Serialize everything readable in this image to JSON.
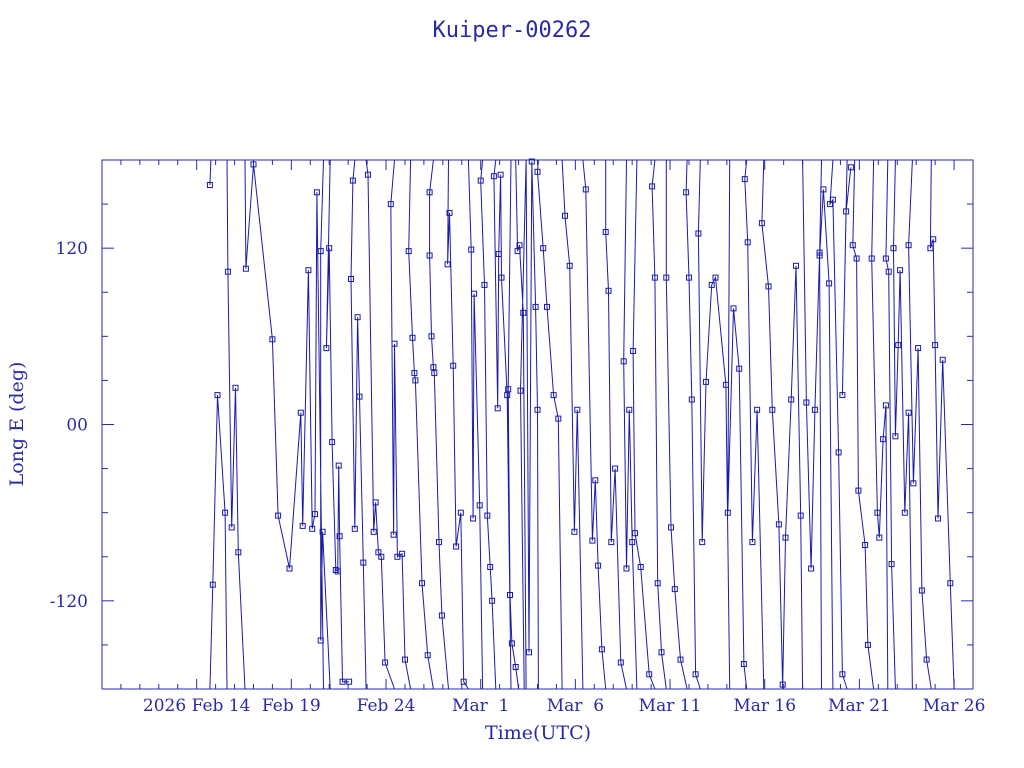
{
  "chart_data": {
    "type": "line",
    "title": "Kuiper-00262",
    "xlabel": "Time(UTC)",
    "ylabel": "Long E (deg)",
    "x_start_date": "2026-02-09",
    "xlim_days": [
      0,
      46
    ],
    "ylim": [
      -180,
      180
    ],
    "x_ticks": [
      {
        "day": 5,
        "label": "2026 Feb 14"
      },
      {
        "day": 10,
        "label": "Feb 19"
      },
      {
        "day": 15,
        "label": "Feb 24"
      },
      {
        "day": 20,
        "label": "Mar  1"
      },
      {
        "day": 25,
        "label": "Mar  6"
      },
      {
        "day": 30,
        "label": "Mar 11"
      },
      {
        "day": 35,
        "label": "Mar 16"
      },
      {
        "day": 40,
        "label": "Mar 21"
      },
      {
        "day": 45,
        "label": "Mar 26"
      }
    ],
    "y_ticks": [
      {
        "value": -120,
        "label": "-120"
      },
      {
        "value": 0,
        "label": "00"
      },
      {
        "value": 120,
        "label": "120"
      }
    ],
    "grid": false,
    "colors": {
      "line": "#1a1aaa",
      "text": "#2a2aa8",
      "axes": "#2a2aa8"
    },
    "series": [
      {
        "name": "",
        "points": [
          [
            5.7,
            163
          ],
          [
            5.75,
            180
          ],
          [
            5.7,
            -180
          ],
          [
            5.85,
            -109
          ],
          [
            6.1,
            20
          ],
          [
            6.5,
            -60
          ],
          [
            6.6,
            -180
          ],
          [
            6.6,
            180
          ],
          [
            6.65,
            104
          ],
          [
            6.85,
            -70
          ],
          [
            7.05,
            25
          ],
          [
            7.2,
            -87
          ],
          [
            7.55,
            -180
          ],
          [
            7.55,
            180
          ],
          [
            7.6,
            106
          ],
          [
            8.0,
            177
          ],
          [
            9.0,
            58
          ],
          [
            9.3,
            -62
          ],
          [
            9.9,
            -98
          ],
          [
            10.5,
            8
          ],
          [
            10.6,
            -69
          ],
          [
            10.9,
            105
          ],
          [
            11.1,
            -71
          ],
          [
            11.25,
            -61
          ],
          [
            11.35,
            158
          ],
          [
            11.7,
            -180
          ],
          [
            11.7,
            180
          ],
          [
            11.55,
            118
          ],
          [
            11.55,
            -147
          ],
          [
            11.65,
            -73
          ],
          [
            12.05,
            -180
          ],
          [
            12.05,
            180
          ],
          [
            11.85,
            52
          ],
          [
            12.0,
            120
          ],
          [
            12.15,
            -12
          ],
          [
            12.35,
            -99
          ],
          [
            12.45,
            -100
          ],
          [
            12.5,
            -28
          ],
          [
            12.55,
            -76
          ],
          [
            12.7,
            -175
          ],
          [
            13.05,
            -175
          ],
          [
            13.35,
            180
          ],
          [
            13.35,
            180
          ],
          [
            13.25,
            166
          ],
          [
            13.15,
            99
          ],
          [
            13.35,
            -71
          ],
          [
            13.5,
            73
          ],
          [
            13.6,
            19
          ],
          [
            13.8,
            -94
          ],
          [
            13.95,
            -180
          ],
          [
            13.95,
            180
          ],
          [
            14.05,
            170
          ],
          [
            14.35,
            -73
          ],
          [
            14.45,
            -53
          ],
          [
            14.6,
            -87
          ],
          [
            14.75,
            -90
          ],
          [
            14.95,
            -162
          ],
          [
            15.45,
            -180
          ],
          [
            15.45,
            180
          ],
          [
            15.25,
            150
          ],
          [
            15.4,
            -75
          ],
          [
            15.45,
            55
          ],
          [
            15.6,
            -90
          ],
          [
            15.85,
            -88
          ],
          [
            16.0,
            -160
          ],
          [
            16.3,
            -180
          ],
          [
            16.3,
            180
          ],
          [
            16.2,
            118
          ],
          [
            16.4,
            59
          ],
          [
            16.5,
            35
          ],
          [
            16.55,
            30
          ],
          [
            16.9,
            -108
          ],
          [
            17.2,
            -157
          ],
          [
            17.5,
            -180
          ],
          [
            17.5,
            180
          ],
          [
            17.3,
            158
          ],
          [
            17.3,
            115
          ],
          [
            17.4,
            60
          ],
          [
            17.5,
            39
          ],
          [
            17.55,
            35
          ],
          [
            17.8,
            -80
          ],
          [
            17.95,
            -130
          ],
          [
            18.3,
            -180
          ],
          [
            18.3,
            180
          ],
          [
            18.25,
            109
          ],
          [
            18.35,
            144
          ],
          [
            18.55,
            40
          ],
          [
            18.7,
            -83
          ],
          [
            18.95,
            -60
          ],
          [
            19.1,
            -175
          ],
          [
            19.35,
            -180
          ],
          [
            19.35,
            180
          ],
          [
            19.5,
            119
          ],
          [
            19.6,
            -64
          ],
          [
            19.65,
            89
          ],
          [
            19.95,
            -55
          ],
          [
            20.1,
            -180
          ],
          [
            20.1,
            180
          ],
          [
            20.0,
            166
          ],
          [
            20.2,
            95
          ],
          [
            20.35,
            -62
          ],
          [
            20.5,
            -97
          ],
          [
            20.6,
            -120
          ],
          [
            20.8,
            -180
          ],
          [
            20.8,
            180
          ],
          [
            20.7,
            169
          ],
          [
            20.9,
            11
          ],
          [
            20.95,
            116
          ],
          [
            21.05,
            170
          ],
          [
            21.1,
            100
          ],
          [
            21.4,
            20
          ],
          [
            21.6,
            -180
          ],
          [
            21.6,
            180
          ],
          [
            21.45,
            24
          ],
          [
            21.55,
            -116
          ],
          [
            21.65,
            -149
          ],
          [
            21.85,
            -165
          ],
          [
            22.0,
            -180
          ],
          [
            22.0,
            180
          ],
          [
            21.85,
            180
          ],
          [
            21.95,
            118
          ],
          [
            22.05,
            122
          ],
          [
            22.25,
            76
          ],
          [
            22.4,
            -180
          ],
          [
            22.4,
            180
          ],
          [
            22.1,
            23
          ],
          [
            22.3,
            -180
          ],
          [
            22.3,
            180
          ],
          [
            22.4,
            -180
          ],
          [
            22.4,
            180
          ],
          [
            22.55,
            -155
          ],
          [
            22.7,
            179
          ],
          [
            22.9,
            80
          ],
          [
            23.0,
            10
          ],
          [
            23.05,
            -180
          ],
          [
            23.05,
            180
          ],
          [
            23.0,
            172
          ],
          [
            23.3,
            120
          ],
          [
            23.5,
            80
          ],
          [
            23.85,
            20
          ],
          [
            24.1,
            4
          ],
          [
            24.3,
            -180
          ],
          [
            24.3,
            180
          ],
          [
            24.45,
            142
          ],
          [
            24.7,
            108
          ],
          [
            24.95,
            -73
          ],
          [
            25.1,
            10
          ],
          [
            25.4,
            -180
          ],
          [
            25.4,
            180
          ],
          [
            25.55,
            160
          ],
          [
            25.9,
            -79
          ],
          [
            26.05,
            -38
          ],
          [
            26.2,
            -96
          ],
          [
            26.4,
            -153
          ],
          [
            26.6,
            -180
          ],
          [
            26.6,
            180
          ],
          [
            26.6,
            131
          ],
          [
            26.75,
            91
          ],
          [
            26.9,
            -80
          ],
          [
            27.1,
            -30
          ],
          [
            27.4,
            -162
          ],
          [
            27.7,
            -180
          ],
          [
            27.7,
            180
          ],
          [
            27.55,
            43
          ],
          [
            27.7,
            -98
          ],
          [
            27.85,
            10
          ],
          [
            28.0,
            -80
          ],
          [
            28.25,
            -180
          ],
          [
            28.25,
            180
          ],
          [
            28.05,
            50
          ],
          [
            28.15,
            -74
          ],
          [
            28.45,
            -97
          ],
          [
            28.9,
            -170
          ],
          [
            29.2,
            -180
          ],
          [
            29.2,
            180
          ],
          [
            29.05,
            162
          ],
          [
            29.2,
            100
          ],
          [
            29.35,
            -108
          ],
          [
            29.55,
            -155
          ],
          [
            29.8,
            -180
          ],
          [
            29.8,
            180
          ],
          [
            29.8,
            100
          ],
          [
            30.05,
            -70
          ],
          [
            30.25,
            -112
          ],
          [
            30.55,
            -160
          ],
          [
            30.9,
            -180
          ],
          [
            30.9,
            180
          ],
          [
            30.85,
            158
          ],
          [
            31.0,
            100
          ],
          [
            31.15,
            17
          ],
          [
            31.35,
            -170
          ],
          [
            31.6,
            -180
          ],
          [
            31.6,
            180
          ],
          [
            31.5,
            130
          ],
          [
            31.7,
            -80
          ],
          [
            31.9,
            29
          ],
          [
            32.2,
            95
          ],
          [
            32.4,
            100
          ],
          [
            32.95,
            27
          ],
          [
            33.15,
            -180
          ],
          [
            33.15,
            180
          ],
          [
            33.05,
            -60
          ],
          [
            33.35,
            79
          ],
          [
            33.65,
            38
          ],
          [
            33.9,
            -163
          ],
          [
            34.05,
            -180
          ],
          [
            34.05,
            180
          ],
          [
            33.95,
            167
          ],
          [
            34.1,
            124
          ],
          [
            34.35,
            -80
          ],
          [
            34.6,
            10
          ],
          [
            34.95,
            -180
          ],
          [
            34.95,
            180
          ],
          [
            34.85,
            137
          ],
          [
            35.2,
            94
          ],
          [
            35.4,
            10
          ],
          [
            35.75,
            -68
          ],
          [
            35.95,
            -180
          ],
          [
            35.95,
            180
          ],
          [
            35.95,
            -177
          ],
          [
            36.1,
            -77
          ],
          [
            36.4,
            17
          ],
          [
            36.65,
            108
          ],
          [
            36.9,
            -62
          ],
          [
            37.0,
            -180
          ],
          [
            37.0,
            180
          ],
          [
            37.2,
            15
          ],
          [
            37.45,
            -98
          ],
          [
            37.65,
            10
          ],
          [
            37.9,
            117
          ],
          [
            38.0,
            -180
          ],
          [
            38.0,
            180
          ],
          [
            37.9,
            115
          ],
          [
            38.1,
            160
          ],
          [
            38.4,
            96
          ],
          [
            38.6,
            -180
          ],
          [
            38.6,
            180
          ],
          [
            38.45,
            150
          ],
          [
            38.6,
            153
          ],
          [
            38.9,
            -19
          ],
          [
            39.1,
            -170
          ],
          [
            39.35,
            -180
          ],
          [
            39.35,
            180
          ],
          [
            39.1,
            20
          ],
          [
            39.3,
            145
          ],
          [
            39.55,
            175
          ],
          [
            39.75,
            -180
          ],
          [
            39.75,
            180
          ],
          [
            39.65,
            122
          ],
          [
            39.85,
            113
          ],
          [
            39.95,
            -45
          ],
          [
            40.3,
            -82
          ],
          [
            40.45,
            -150
          ],
          [
            40.75,
            -180
          ],
          [
            40.75,
            180
          ],
          [
            40.65,
            113
          ],
          [
            40.95,
            -60
          ],
          [
            41.05,
            -77
          ],
          [
            41.25,
            -10
          ],
          [
            41.4,
            13
          ],
          [
            41.5,
            -180
          ],
          [
            41.5,
            180
          ],
          [
            41.4,
            113
          ],
          [
            41.55,
            104
          ],
          [
            41.7,
            -95
          ],
          [
            41.9,
            -180
          ],
          [
            41.9,
            180
          ],
          [
            41.8,
            120
          ],
          [
            41.9,
            -8
          ],
          [
            42.05,
            54
          ],
          [
            42.15,
            105
          ],
          [
            42.4,
            -60
          ],
          [
            42.6,
            8
          ],
          [
            42.8,
            -180
          ],
          [
            42.8,
            180
          ],
          [
            42.6,
            122
          ],
          [
            42.85,
            -40
          ],
          [
            43.1,
            52
          ],
          [
            43.3,
            -113
          ],
          [
            43.55,
            -160
          ],
          [
            43.8,
            -180
          ],
          [
            43.8,
            180
          ],
          [
            43.75,
            120
          ],
          [
            43.9,
            126
          ],
          [
            44.0,
            54
          ],
          [
            44.15,
            -64
          ],
          [
            44.4,
            44
          ],
          [
            44.8,
            -108
          ],
          [
            45.0,
            -180
          ]
        ]
      }
    ]
  }
}
